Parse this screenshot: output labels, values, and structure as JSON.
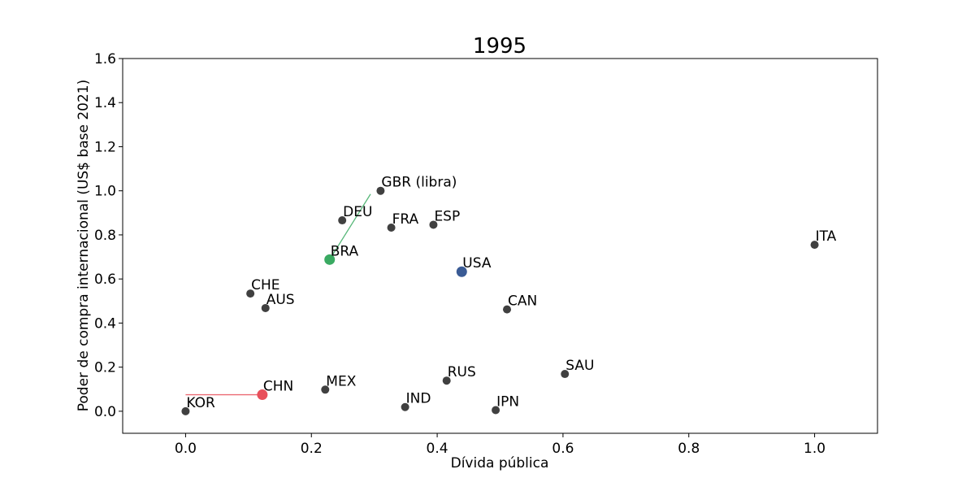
{
  "chart_data": {
    "type": "scatter",
    "title": "1995",
    "xlabel": "Dívida pública",
    "ylabel": "Poder de compra internacional (US$ base 2021)",
    "xlim": [
      -0.1,
      1.1
    ],
    "ylim": [
      -0.1,
      1.6
    ],
    "xticks": [
      0.0,
      0.2,
      0.4,
      0.6,
      0.8,
      1.0
    ],
    "yticks": [
      0.0,
      0.2,
      0.4,
      0.6,
      0.8,
      1.0,
      1.2,
      1.4,
      1.6
    ],
    "grid": false,
    "points": [
      {
        "label": "KOR",
        "x": 0.0,
        "y": 0.0,
        "color": "#404040"
      },
      {
        "label": "CHN",
        "x": 0.122,
        "y": 0.075,
        "color": "#e8505b"
      },
      {
        "label": "MEX",
        "x": 0.222,
        "y": 0.098,
        "color": "#404040"
      },
      {
        "label": "IND",
        "x": 0.349,
        "y": 0.019,
        "color": "#404040"
      },
      {
        "label": "RUS",
        "x": 0.415,
        "y": 0.139,
        "color": "#404040"
      },
      {
        "label": "IPN",
        "x": 0.493,
        "y": 0.005,
        "color": "#404040"
      },
      {
        "label": "SAU",
        "x": 0.603,
        "y": 0.169,
        "color": "#404040"
      },
      {
        "label": "CHE",
        "x": 0.103,
        "y": 0.534,
        "color": "#404040"
      },
      {
        "label": "AUS",
        "x": 0.127,
        "y": 0.468,
        "color": "#404040"
      },
      {
        "label": "CAN",
        "x": 0.511,
        "y": 0.462,
        "color": "#404040"
      },
      {
        "label": "USA",
        "x": 0.439,
        "y": 0.633,
        "color": "#3a5b95"
      },
      {
        "label": "BRA",
        "x": 0.229,
        "y": 0.688,
        "color": "#3aaa62"
      },
      {
        "label": "DEU",
        "x": 0.249,
        "y": 0.866,
        "color": "#404040"
      },
      {
        "label": "FRA",
        "x": 0.327,
        "y": 0.833,
        "color": "#404040"
      },
      {
        "label": "ESP",
        "x": 0.394,
        "y": 0.846,
        "color": "#404040"
      },
      {
        "label": "GBR (libra)",
        "x": 0.31,
        "y": 1.0,
        "color": "#404040"
      },
      {
        "label": "ITA",
        "x": 1.0,
        "y": 0.755,
        "color": "#404040"
      }
    ],
    "trails": [
      {
        "color": "#e8505b",
        "x": [
          0.0,
          0.122
        ],
        "y": [
          0.075,
          0.075
        ]
      },
      {
        "color": "#3aaa62",
        "x": [
          0.229,
          0.294
        ],
        "y": [
          0.688,
          0.985
        ]
      }
    ]
  }
}
